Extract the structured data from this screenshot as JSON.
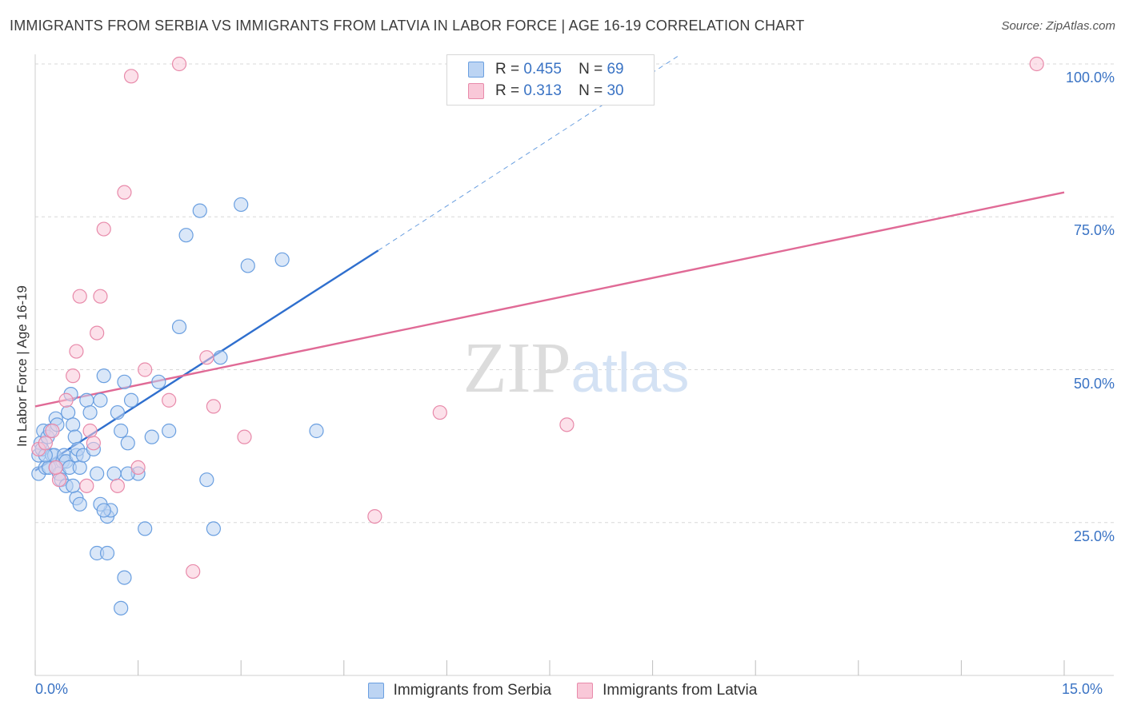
{
  "chart_data": {
    "type": "scatter",
    "title": "IMMIGRANTS FROM SERBIA VS IMMIGRANTS FROM LATVIA IN LABOR FORCE | AGE 16-19 CORRELATION CHART",
    "source": "Source: ZipAtlas.com",
    "watermark": "ZIPatlas",
    "xlabel": "",
    "ylabel": "In Labor Force | Age 16-19",
    "xlim": [
      0,
      15
    ],
    "ylim": [
      0,
      100
    ],
    "x_tick_labels": [
      "0.0%",
      "15.0%"
    ],
    "y_tick_labels": [
      "100.0%",
      "75.0%",
      "50.0%",
      "25.0%"
    ],
    "y_ticks": [
      100,
      75,
      50,
      25
    ],
    "legend": [
      {
        "name": "Immigrants from Serbia",
        "r_label": "R =",
        "r_value": "0.455",
        "n_label": "N =",
        "n_value": "69",
        "color": "#6a9fe0",
        "fill": "#bcd4f3",
        "line": "#2f6fce"
      },
      {
        "name": "Immigrants from Latvia",
        "r_label": "R =",
        "r_value": "0.313",
        "n_label": "N =",
        "n_value": "30",
        "color": "#e88aaa",
        "fill": "#f9c8d8",
        "line": "#e06a96"
      }
    ],
    "series": [
      {
        "name": "Immigrants from Serbia",
        "trend": {
          "x0": 0.0,
          "y0": 33.5,
          "x1": 5.0,
          "y1": 69.5,
          "dash_to_x": 9.4,
          "dash_to_y": 101.5
        },
        "points": [
          [
            0.05,
            33
          ],
          [
            0.05,
            36
          ],
          [
            0.08,
            38
          ],
          [
            0.1,
            37
          ],
          [
            0.12,
            40
          ],
          [
            0.15,
            34
          ],
          [
            0.18,
            39
          ],
          [
            0.2,
            34
          ],
          [
            0.22,
            40
          ],
          [
            0.25,
            36
          ],
          [
            0.28,
            36
          ],
          [
            0.3,
            42
          ],
          [
            0.32,
            41
          ],
          [
            0.35,
            33
          ],
          [
            0.38,
            32
          ],
          [
            0.4,
            35
          ],
          [
            0.42,
            36
          ],
          [
            0.45,
            35
          ],
          [
            0.48,
            43
          ],
          [
            0.5,
            34
          ],
          [
            0.52,
            46
          ],
          [
            0.55,
            41
          ],
          [
            0.58,
            39
          ],
          [
            0.6,
            36
          ],
          [
            0.62,
            37
          ],
          [
            0.65,
            34
          ],
          [
            0.7,
            36
          ],
          [
            0.75,
            45
          ],
          [
            0.8,
            43
          ],
          [
            0.85,
            37
          ],
          [
            0.9,
            33
          ],
          [
            0.95,
            45
          ],
          [
            1.0,
            49
          ],
          [
            1.05,
            26
          ],
          [
            1.1,
            27
          ],
          [
            1.15,
            33
          ],
          [
            1.2,
            43
          ],
          [
            1.25,
            40
          ],
          [
            1.3,
            48
          ],
          [
            1.35,
            38
          ],
          [
            1.4,
            45
          ],
          [
            1.5,
            33
          ],
          [
            1.6,
            24
          ],
          [
            1.7,
            39
          ],
          [
            1.8,
            48
          ],
          [
            1.95,
            40
          ],
          [
            2.1,
            57
          ],
          [
            2.2,
            72
          ],
          [
            2.4,
            76
          ],
          [
            2.5,
            32
          ],
          [
            2.6,
            24
          ],
          [
            2.7,
            52
          ],
          [
            3.0,
            77
          ],
          [
            3.1,
            67
          ],
          [
            3.6,
            68
          ],
          [
            4.1,
            40
          ],
          [
            0.9,
            20
          ],
          [
            1.05,
            20
          ],
          [
            1.3,
            16
          ],
          [
            1.25,
            11
          ],
          [
            0.6,
            29
          ],
          [
            0.65,
            28
          ],
          [
            0.95,
            28
          ],
          [
            1.0,
            27
          ],
          [
            1.35,
            33
          ],
          [
            0.15,
            36
          ],
          [
            0.3,
            34
          ],
          [
            0.45,
            31
          ],
          [
            0.55,
            31
          ]
        ]
      },
      {
        "name": "Immigrants from Latvia",
        "trend": {
          "x0": 0.0,
          "y0": 44.0,
          "x1": 15.0,
          "y1": 79.0
        },
        "points": [
          [
            0.05,
            37
          ],
          [
            0.15,
            38
          ],
          [
            0.25,
            40
          ],
          [
            0.35,
            32
          ],
          [
            0.45,
            45
          ],
          [
            0.55,
            49
          ],
          [
            0.6,
            53
          ],
          [
            0.65,
            62
          ],
          [
            0.75,
            31
          ],
          [
            0.8,
            40
          ],
          [
            0.85,
            38
          ],
          [
            0.9,
            56
          ],
          [
            0.95,
            62
          ],
          [
            1.0,
            73
          ],
          [
            1.2,
            31
          ],
          [
            1.3,
            79
          ],
          [
            1.4,
            98
          ],
          [
            1.5,
            34
          ],
          [
            1.6,
            50
          ],
          [
            1.95,
            45
          ],
          [
            2.1,
            100
          ],
          [
            2.3,
            17
          ],
          [
            2.5,
            52
          ],
          [
            2.6,
            44
          ],
          [
            3.05,
            39
          ],
          [
            4.95,
            26
          ],
          [
            5.9,
            43
          ],
          [
            7.75,
            41
          ],
          [
            14.6,
            100
          ],
          [
            0.3,
            34
          ]
        ]
      }
    ]
  }
}
